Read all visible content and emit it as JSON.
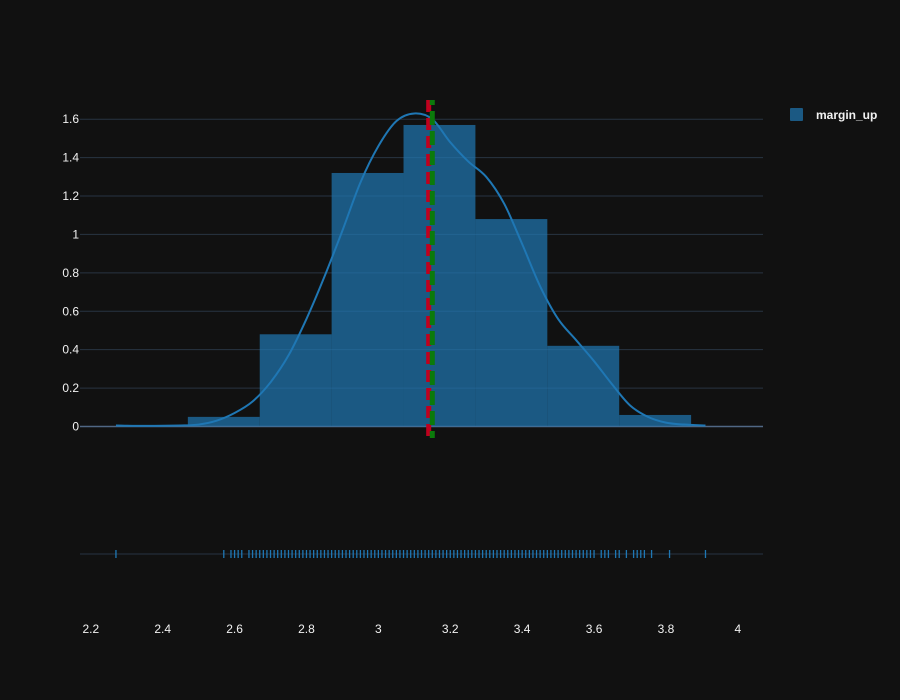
{
  "chart_data": {
    "type": "histogram",
    "series": [
      {
        "name": "margin_up",
        "bins": [
          {
            "x0": 2.47,
            "x1": 2.67,
            "density": 0.05
          },
          {
            "x0": 2.67,
            "x1": 2.87,
            "density": 0.48
          },
          {
            "x0": 2.87,
            "x1": 3.07,
            "density": 1.32
          },
          {
            "x0": 3.07,
            "x1": 3.27,
            "density": 1.57
          },
          {
            "x0": 3.27,
            "x1": 3.47,
            "density": 1.08
          },
          {
            "x0": 3.47,
            "x1": 3.67,
            "density": 0.42
          },
          {
            "x0": 3.67,
            "x1": 3.87,
            "density": 0.06
          }
        ],
        "kde": [
          [
            2.27,
            0.005
          ],
          [
            2.35,
            0.003
          ],
          [
            2.45,
            0.005
          ],
          [
            2.5,
            0.01
          ],
          [
            2.55,
            0.03
          ],
          [
            2.6,
            0.07
          ],
          [
            2.65,
            0.13
          ],
          [
            2.7,
            0.23
          ],
          [
            2.75,
            0.37
          ],
          [
            2.8,
            0.56
          ],
          [
            2.85,
            0.78
          ],
          [
            2.9,
            1.02
          ],
          [
            2.95,
            1.27
          ],
          [
            3.0,
            1.46
          ],
          [
            3.05,
            1.59
          ],
          [
            3.1,
            1.63
          ],
          [
            3.15,
            1.6
          ],
          [
            3.2,
            1.48
          ],
          [
            3.25,
            1.38
          ],
          [
            3.3,
            1.3
          ],
          [
            3.35,
            1.16
          ],
          [
            3.4,
            0.95
          ],
          [
            3.45,
            0.73
          ],
          [
            3.5,
            0.56
          ],
          [
            3.55,
            0.45
          ],
          [
            3.6,
            0.34
          ],
          [
            3.65,
            0.22
          ],
          [
            3.7,
            0.11
          ],
          [
            3.75,
            0.05
          ],
          [
            3.8,
            0.02
          ],
          [
            3.85,
            0.01
          ],
          [
            3.91,
            0.005
          ]
        ],
        "rug": [
          2.27,
          2.57,
          2.59,
          2.6,
          2.61,
          2.62,
          2.64,
          2.65,
          2.66,
          2.67,
          2.68,
          2.69,
          2.7,
          2.71,
          2.72,
          2.73,
          2.74,
          2.75,
          2.76,
          2.77,
          2.78,
          2.79,
          2.8,
          2.81,
          2.82,
          2.83,
          2.84,
          2.85,
          2.86,
          2.87,
          2.88,
          2.89,
          2.9,
          2.91,
          2.92,
          2.93,
          2.94,
          2.95,
          2.96,
          2.97,
          2.98,
          2.99,
          3.0,
          3.01,
          3.02,
          3.03,
          3.04,
          3.05,
          3.06,
          3.07,
          3.08,
          3.09,
          3.1,
          3.11,
          3.12,
          3.13,
          3.14,
          3.15,
          3.16,
          3.17,
          3.18,
          3.19,
          3.2,
          3.21,
          3.22,
          3.23,
          3.24,
          3.25,
          3.26,
          3.27,
          3.28,
          3.29,
          3.3,
          3.31,
          3.32,
          3.33,
          3.34,
          3.35,
          3.36,
          3.37,
          3.38,
          3.39,
          3.4,
          3.41,
          3.42,
          3.43,
          3.44,
          3.45,
          3.46,
          3.47,
          3.48,
          3.49,
          3.5,
          3.51,
          3.52,
          3.53,
          3.54,
          3.55,
          3.56,
          3.57,
          3.58,
          3.59,
          3.6,
          3.62,
          3.63,
          3.64,
          3.66,
          3.67,
          3.69,
          3.71,
          3.72,
          3.73,
          3.74,
          3.76,
          3.81,
          3.91
        ],
        "color": "#1f77b4"
      }
    ],
    "reference_lines": [
      {
        "x": 3.14,
        "color": "#c0001f",
        "dash": "dashed"
      },
      {
        "x": 3.15,
        "color": "#0b7a0b",
        "dash": "dashed"
      }
    ],
    "xlim": [
      2.17,
      4.07
    ],
    "ylim": [
      -0.06,
      1.7
    ],
    "xticks": [
      2.2,
      2.4,
      2.6,
      2.8,
      3,
      3.2,
      3.4,
      3.6,
      3.8,
      4
    ],
    "yticks": [
      0,
      0.2,
      0.4,
      0.6,
      0.8,
      1,
      1.2,
      1.4,
      1.6
    ],
    "grid": true,
    "legend_position": "top-right",
    "background": "#111111",
    "gridline_color": "#283442"
  }
}
